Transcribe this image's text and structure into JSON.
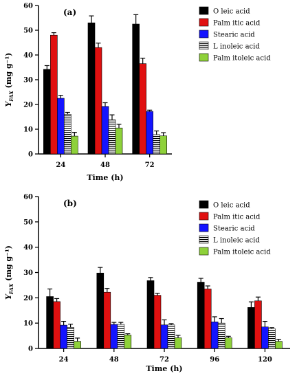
{
  "chart_data": [
    {
      "type": "bar",
      "panel_label": "(a)",
      "xlabel": "Time (h)",
      "ylabel_base": "Y",
      "ylabel_sub": "FAX",
      "ylabel_unit": " (mg g⁻¹)",
      "ylim": [
        0,
        60
      ],
      "yticks": [
        0,
        10,
        20,
        30,
        40,
        50,
        60
      ],
      "categories": [
        "24",
        "48",
        "72"
      ],
      "legend_position": "top-right",
      "series": [
        {
          "name": "O leic acid",
          "color": "#000000",
          "pattern": "solid",
          "values": [
            34.2,
            53.0,
            52.5
          ],
          "errors": [
            1.5,
            2.8,
            3.8
          ]
        },
        {
          "name": "Palm itic acid",
          "color": "#e01010",
          "pattern": "solid",
          "values": [
            48.0,
            43.0,
            36.5
          ],
          "errors": [
            1.0,
            1.8,
            2.2
          ]
        },
        {
          "name": "Stearic acid",
          "color": "#1414ff",
          "pattern": "solid",
          "values": [
            22.5,
            19.2,
            17.2
          ],
          "errors": [
            1.2,
            1.5,
            0.5
          ]
        },
        {
          "name": "L inoleic acid",
          "color": "#ffffff",
          "pattern": "hstripe",
          "values": [
            16.0,
            13.8,
            7.8
          ],
          "errors": [
            0.8,
            2.0,
            1.5
          ]
        },
        {
          "name": "Palm itoleic acid",
          "color": "#8ed13a",
          "pattern": "solid",
          "values": [
            7.2,
            10.5,
            7.3
          ],
          "errors": [
            1.5,
            1.5,
            1.3
          ]
        }
      ]
    },
    {
      "type": "bar",
      "panel_label": "(b)",
      "xlabel": "Time (h)",
      "ylabel_base": "Y",
      "ylabel_sub": "FAX",
      "ylabel_unit": " (mg g⁻¹)",
      "ylim": [
        0,
        60
      ],
      "yticks": [
        0,
        10,
        20,
        30,
        40,
        50,
        60
      ],
      "categories": [
        "24",
        "48",
        "72",
        "96",
        "120"
      ],
      "legend_position": "top-right",
      "series": [
        {
          "name": "O leic acid",
          "color": "#000000",
          "pattern": "solid",
          "values": [
            20.5,
            29.8,
            26.8,
            26.2,
            16.2
          ],
          "errors": [
            3.0,
            2.2,
            1.2,
            1.5,
            2.2
          ]
        },
        {
          "name": "Palm itic acid",
          "color": "#e01010",
          "pattern": "solid",
          "values": [
            18.5,
            22.2,
            21.0,
            23.5,
            18.8
          ],
          "errors": [
            1.2,
            1.5,
            0.8,
            1.2,
            1.5
          ]
        },
        {
          "name": "Stearic acid",
          "color": "#1414ff",
          "pattern": "solid",
          "values": [
            9.2,
            9.5,
            9.3,
            10.5,
            8.5
          ],
          "errors": [
            1.5,
            0.8,
            2.0,
            2.0,
            2.2
          ]
        },
        {
          "name": "L inoleic acid",
          "color": "#ffffff",
          "pattern": "hstripe",
          "values": [
            8.3,
            9.5,
            9.3,
            10.0,
            7.8
          ],
          "errors": [
            1.3,
            0.8,
            0.5,
            1.8,
            0.4
          ]
        },
        {
          "name": "Palm itoleic acid",
          "color": "#8ed13a",
          "pattern": "solid",
          "values": [
            2.8,
            5.3,
            4.2,
            4.2,
            2.8
          ],
          "errors": [
            1.3,
            0.5,
            1.0,
            0.6,
            0.8
          ]
        }
      ]
    }
  ]
}
